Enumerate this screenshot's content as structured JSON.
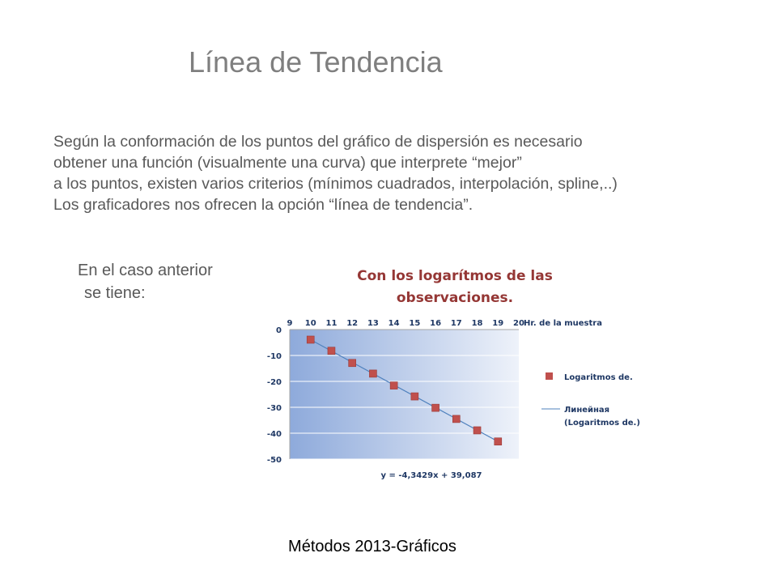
{
  "slide": {
    "title": "Línea de Tendencia",
    "paragraph": [
      "Según la conformación de los puntos del gráfico de dispersión es necesario",
      "obtener una  función (visualmente una curva) que  interprete “mejor”",
      "a los puntos, existen varios criterios (mínimos cuadrados, interpolación, spline,..)",
      "Los graficadores nos ofrecen la opción “línea de tendencia”."
    ],
    "side_note": [
      "En el caso anterior",
      "se tiene:"
    ],
    "footer": "Métodos 2013-Gráficos"
  },
  "chart_data": {
    "type": "scatter",
    "title_lines": [
      "Con los logarítmos de las",
      "observaciones."
    ],
    "xlabel": "Hr. de la muestra",
    "ylabel": "",
    "xlim": [
      9,
      20
    ],
    "ylim": [
      -50,
      0
    ],
    "x_ticks": [
      9,
      10,
      11,
      12,
      13,
      14,
      15,
      16,
      17,
      18,
      19,
      20
    ],
    "y_ticks": [
      0,
      -10,
      -20,
      -30,
      -40,
      -50
    ],
    "x_axis_position": "top",
    "grid": true,
    "series": [
      {
        "name": "Logaritmos de.",
        "marker_color": "#c0504d",
        "x": [
          10,
          11,
          12,
          13,
          14,
          15,
          16,
          17,
          18,
          19
        ],
        "y": [
          -3.9,
          -8.2,
          -12.9,
          -17,
          -21.6,
          -25.8,
          -30.2,
          -34.5,
          -38.9,
          -43.2
        ]
      }
    ],
    "trendline": {
      "name": "Линейная (Logaritmos de.)",
      "name_lines": [
        "Линейная",
        "(Logaritmos de.)"
      ],
      "equation": "y = -4,3429x + 39,087",
      "slope": -4.3429,
      "intercept": 39.087,
      "color": "#4f81bd"
    },
    "text_color": "#1f3864",
    "legend_position": "right"
  }
}
